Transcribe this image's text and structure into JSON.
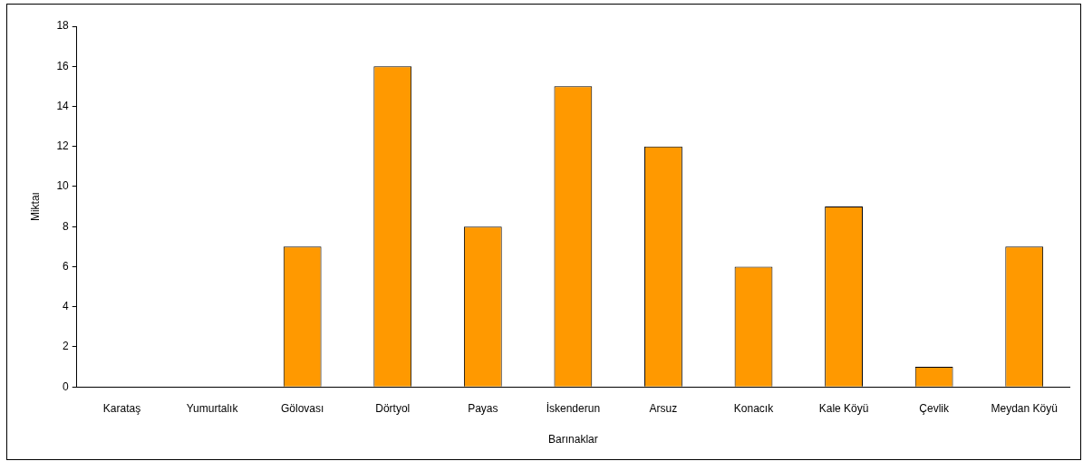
{
  "chart_data": {
    "type": "bar",
    "xlabel": "Barınaklar",
    "ylabel": "Miktaı",
    "categories": [
      "Karataş",
      "Yumurtalık",
      "Gölovası",
      "Dörtyol",
      "Payas",
      "İskenderun",
      "Arsuz",
      "Konacık",
      "Kale Köyü",
      "Çevlik",
      "Meydan Köyü"
    ],
    "values": [
      0,
      0,
      7,
      16,
      8,
      15,
      12,
      6,
      9,
      1,
      7
    ],
    "color": "#ff9900",
    "ylim": [
      0,
      18
    ],
    "yticks": [
      0,
      2,
      4,
      6,
      8,
      10,
      12,
      14,
      16,
      18
    ],
    "grid": false,
    "legend": false
  }
}
